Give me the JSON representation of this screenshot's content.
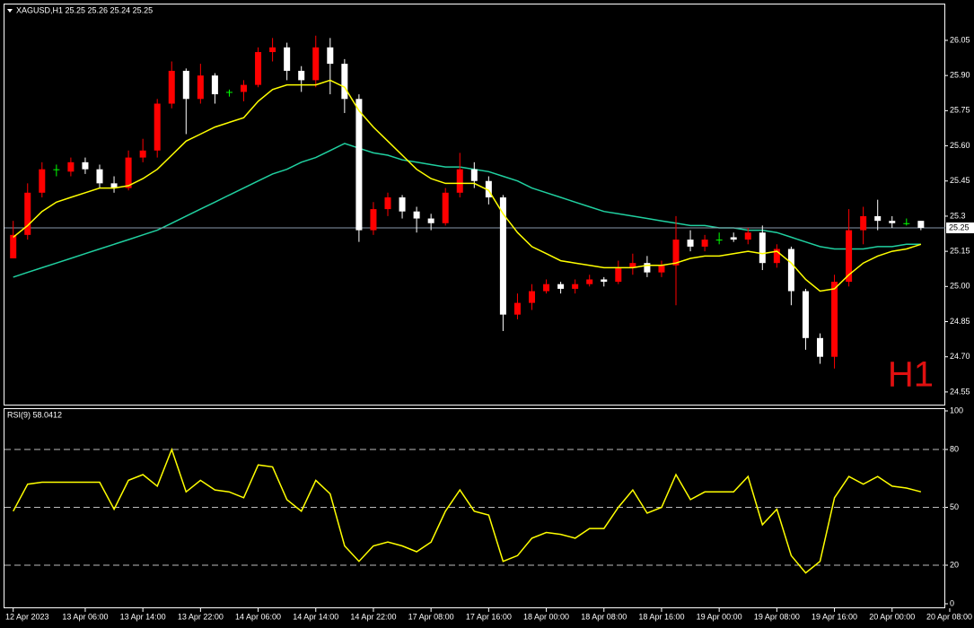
{
  "chart_data": [
    {
      "type": "candlestick",
      "title": "XAGUSD,H1  25.25 25.26 25.24 25.25",
      "annotation": "H1",
      "categories": [
        "12 Apr 2023",
        null,
        null,
        null,
        null,
        "13 Apr 06:00",
        null,
        null,
        null,
        "13 Apr 14:00",
        null,
        null,
        null,
        "13 Apr 22:00",
        null,
        null,
        null,
        "14 Apr 06:00",
        null,
        null,
        null,
        "14 Apr 14:00",
        null,
        null,
        null,
        "14 Apr 22:00",
        null,
        null,
        null,
        "17 Apr 08:00",
        null,
        null,
        null,
        "17 Apr 16:00",
        null,
        null,
        null,
        "18 Apr 00:00",
        null,
        null,
        null,
        "18 Apr 08:00",
        null,
        null,
        null,
        "18 Apr 16:00",
        null,
        null,
        null,
        "19 Apr 00:00",
        null,
        null,
        null,
        "19 Apr 08:00",
        null,
        null,
        null,
        "19 Apr 16:00",
        null,
        null,
        null,
        "20 Apr 00:00",
        null,
        null,
        null,
        "20 Apr 08:00"
      ],
      "open": [
        25.12,
        25.22,
        25.4,
        25.5,
        25.49,
        25.53,
        25.5,
        25.44,
        25.42,
        25.55,
        25.58,
        25.78,
        25.92,
        25.8,
        25.9,
        25.83,
        25.83,
        25.86,
        26.0,
        26.02,
        25.92,
        25.88,
        26.02,
        25.95,
        25.8,
        25.24,
        25.33,
        25.38,
        25.32,
        25.29,
        25.27,
        25.4,
        25.5,
        25.45,
        25.38,
        24.88,
        24.93,
        24.98,
        25.01,
        24.99,
        25.01,
        25.03,
        25.02,
        25.08,
        25.1,
        25.06,
        25.09,
        25.2,
        25.17,
        25.2,
        25.21,
        25.2,
        25.23,
        25.1,
        25.16,
        24.98,
        24.78,
        24.7,
        25.02,
        25.24,
        25.3,
        25.28,
        25.27,
        25.28,
        null,
        null
      ],
      "high": [
        25.28,
        25.44,
        25.53,
        25.52,
        25.55,
        25.55,
        25.52,
        25.47,
        25.58,
        25.63,
        25.8,
        25.96,
        25.93,
        25.95,
        25.91,
        25.84,
        25.88,
        26.02,
        26.06,
        26.04,
        25.94,
        26.07,
        26.06,
        25.97,
        25.82,
        25.36,
        25.4,
        25.39,
        25.34,
        25.31,
        25.42,
        25.57,
        25.53,
        25.47,
        25.39,
        24.97,
        25.01,
        25.03,
        25.02,
        25.03,
        25.05,
        25.04,
        25.11,
        25.14,
        25.13,
        25.11,
        25.3,
        25.24,
        25.22,
        25.23,
        25.23,
        25.25,
        25.26,
        25.18,
        25.17,
        24.99,
        24.8,
        25.05,
        25.33,
        25.34,
        25.37,
        25.3,
        25.29,
        25.28,
        null,
        null
      ],
      "low": [
        25.12,
        25.2,
        25.38,
        25.47,
        25.47,
        25.48,
        25.42,
        25.4,
        25.41,
        25.53,
        25.55,
        25.76,
        25.65,
        25.78,
        25.78,
        25.81,
        25.79,
        25.85,
        25.96,
        25.88,
        25.83,
        25.85,
        25.82,
        25.74,
        25.19,
        25.22,
        25.3,
        25.29,
        25.23,
        25.24,
        25.26,
        25.38,
        25.42,
        25.35,
        24.81,
        24.86,
        24.9,
        24.97,
        24.97,
        24.97,
        25.0,
        25.0,
        25.01,
        25.05,
        25.04,
        25.04,
        24.92,
        25.15,
        25.15,
        25.18,
        25.19,
        25.18,
        25.07,
        25.08,
        24.92,
        24.73,
        24.67,
        24.65,
        25.0,
        25.18,
        25.24,
        25.25,
        25.26,
        25.24,
        null,
        null
      ],
      "close": [
        25.22,
        25.4,
        25.5,
        25.5,
        25.53,
        25.5,
        25.44,
        25.42,
        25.55,
        25.58,
        25.78,
        25.92,
        25.8,
        25.9,
        25.82,
        25.83,
        25.86,
        26.0,
        26.02,
        25.92,
        25.88,
        26.02,
        25.95,
        25.8,
        25.24,
        25.33,
        25.38,
        25.32,
        25.29,
        25.27,
        25.4,
        25.5,
        25.45,
        25.38,
        24.88,
        24.93,
        24.98,
        25.01,
        24.99,
        25.01,
        25.03,
        25.02,
        25.08,
        25.1,
        25.06,
        25.09,
        25.2,
        25.17,
        25.2,
        25.2,
        25.2,
        25.23,
        25.1,
        25.16,
        24.98,
        24.78,
        24.7,
        25.02,
        25.24,
        25.3,
        25.28,
        25.27,
        25.27,
        25.25,
        null,
        null
      ],
      "up_color": "#ff0000",
      "down_color": "#ffffff",
      "doji_color": "#00ff00",
      "series": [
        {
          "color": "#ffff00",
          "values": [
            25.21,
            25.26,
            25.32,
            25.36,
            25.38,
            25.4,
            25.42,
            25.42,
            25.43,
            25.46,
            25.5,
            25.56,
            25.62,
            25.65,
            25.68,
            25.7,
            25.72,
            25.79,
            25.84,
            25.86,
            25.86,
            25.86,
            25.88,
            25.85,
            25.75,
            25.68,
            25.62,
            25.56,
            25.5,
            25.46,
            25.44,
            25.44,
            25.44,
            25.41,
            25.31,
            25.23,
            25.17,
            25.14,
            25.11,
            25.1,
            25.09,
            25.08,
            25.08,
            25.08,
            25.09,
            25.09,
            25.1,
            25.12,
            25.13,
            25.13,
            25.14,
            25.15,
            25.14,
            25.15,
            25.1,
            25.03,
            24.98,
            24.99,
            25.05,
            25.1,
            25.13,
            25.15,
            25.16,
            25.18,
            null,
            null
          ]
        },
        {
          "color": "#20d0a0",
          "values": [
            25.04,
            25.06,
            25.08,
            25.1,
            25.12,
            25.14,
            25.16,
            25.18,
            25.2,
            25.22,
            25.24,
            25.27,
            25.3,
            25.33,
            25.36,
            25.39,
            25.42,
            25.45,
            25.48,
            25.5,
            25.53,
            25.55,
            25.58,
            25.61,
            25.59,
            25.57,
            25.56,
            25.54,
            25.53,
            25.52,
            25.51,
            25.51,
            25.5,
            25.49,
            25.47,
            25.45,
            25.42,
            25.4,
            25.38,
            25.36,
            25.34,
            25.32,
            25.31,
            25.3,
            25.29,
            25.28,
            25.27,
            25.26,
            25.26,
            25.25,
            25.25,
            25.24,
            25.24,
            25.23,
            25.21,
            25.19,
            25.17,
            25.16,
            25.16,
            25.16,
            25.17,
            25.17,
            25.18,
            25.18,
            null,
            null
          ]
        }
      ],
      "last_price": 25.25,
      "ylim": [
        24.496,
        26.203
      ],
      "yticks": [
        {
          "value": 24.55,
          "label": "24.55"
        },
        {
          "value": 24.7,
          "label": "24.70"
        },
        24.85,
        {
          "value": 25.0,
          "label": "25.00"
        },
        25.15,
        25.3,
        25.45,
        {
          "value": 25.6,
          "label": "25.60"
        },
        25.75,
        {
          "value": 25.9,
          "label": "25.90"
        },
        26.05
      ]
    },
    {
      "type": "line",
      "title": "RSI(9) 58.0412",
      "series": [
        {
          "color": "#ffff00",
          "values": [
            48,
            62,
            63,
            63,
            63,
            63,
            63,
            49,
            64,
            67,
            61,
            80,
            58,
            64,
            59,
            58,
            55,
            72,
            71,
            54,
            48,
            64,
            57,
            30,
            22,
            30,
            32,
            30,
            27,
            32,
            48,
            59,
            48,
            46,
            22,
            25,
            34,
            37,
            36,
            34,
            39,
            39,
            50,
            59,
            47,
            50,
            67,
            54,
            58,
            58,
            58,
            66,
            41,
            49,
            25,
            16,
            22,
            55,
            66,
            62,
            66,
            61,
            60,
            58.04,
            null,
            null
          ]
        }
      ],
      "levels": [
        20,
        50,
        80
      ],
      "ylim": [
        0,
        100
      ],
      "yticks": [
        0,
        20,
        50,
        80,
        100
      ]
    }
  ]
}
